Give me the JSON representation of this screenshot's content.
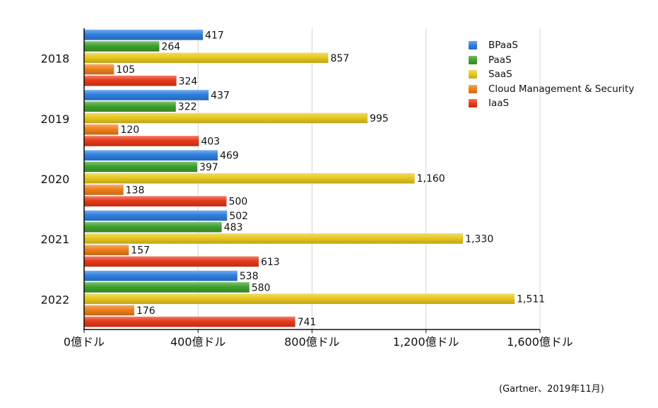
{
  "chart_data": {
    "type": "bar",
    "orientation": "horizontal",
    "categories": [
      "2018",
      "2019",
      "2020",
      "2021",
      "2022"
    ],
    "series": [
      {
        "name": "BPaaS",
        "color": "#2e7fe0",
        "values": [
          417,
          437,
          469,
          502,
          538
        ]
      },
      {
        "name": "PaaS",
        "color": "#3fa02c",
        "values": [
          264,
          322,
          397,
          483,
          580
        ]
      },
      {
        "name": "SaaS",
        "color": "#e8c81e",
        "values": [
          857,
          995,
          1160,
          1330,
          1511
        ]
      },
      {
        "name": "Cloud Management & Security",
        "color": "#ef7f1a",
        "values": [
          105,
          120,
          138,
          157,
          176
        ]
      },
      {
        "name": "IaaS",
        "color": "#e8391a",
        "values": [
          324,
          403,
          500,
          613,
          741
        ]
      }
    ],
    "data_labels": [
      [
        "417",
        "437",
        "469",
        "502",
        "538"
      ],
      [
        "264",
        "322",
        "397",
        "483",
        "580"
      ],
      [
        "857",
        "995",
        "1,160",
        "1,330",
        "1,511"
      ],
      [
        "105",
        "120",
        "138",
        "157",
        "176"
      ],
      [
        "324",
        "403",
        "500",
        "613",
        "741"
      ]
    ],
    "xlim": [
      0,
      1600
    ],
    "x_ticks": [
      0,
      400,
      800,
      1200,
      1600
    ],
    "x_tick_labels": [
      "0億ドル",
      "400億ドル",
      "800億ドル",
      "1,200億ドル",
      "1,600億ドル"
    ],
    "grid": "vertical",
    "legend_position": "top-right",
    "title": "",
    "xlabel": "",
    "ylabel": ""
  },
  "source_note": "(Gartner、2019年11月)"
}
